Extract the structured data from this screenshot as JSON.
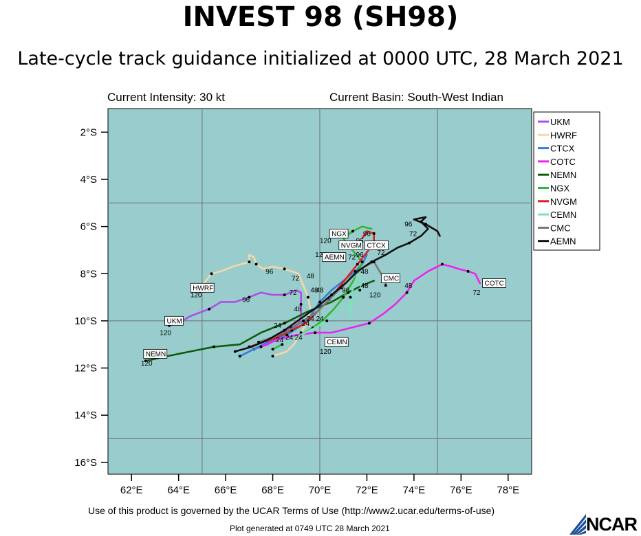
{
  "header": {
    "title": "INVEST 98 (SH98)",
    "subtitle": "Late-cycle track guidance initialized at 0000 UTC, 28 March 2021",
    "intensity": "Current Intensity: 30 kt",
    "basin": "Current Basin: South-West Indian"
  },
  "footer": {
    "terms": "Use of this product is governed by the UCAR Terms of Use (http://www2.ucar.edu/terms-of-use)",
    "generated": "Plot generated at 0749 UTC  28 March 2021",
    "logo": "NCAR"
  },
  "colors": {
    "ocean": "#99cccc",
    "grid": "#707070"
  },
  "chart_data": {
    "type": "line",
    "xlim": [
      61,
      79
    ],
    "ylim": [
      -16.5,
      -1
    ],
    "x_ticks": [
      62,
      64,
      66,
      68,
      70,
      72,
      74,
      76,
      78
    ],
    "x_tick_labels": [
      "62°E",
      "64°E",
      "66°E",
      "68°E",
      "70°E",
      "72°E",
      "74°E",
      "76°E",
      "78°E"
    ],
    "y_ticks": [
      -2,
      -4,
      -6,
      -8,
      -10,
      -12,
      -14,
      -16
    ],
    "y_tick_labels": [
      "2°S",
      "4°S",
      "6°S",
      "8°S",
      "10°S",
      "12°S",
      "14°S",
      "16°S"
    ],
    "grid_lon": [
      65,
      70,
      75
    ],
    "grid_lat": [
      -5,
      -10,
      -15
    ],
    "legend_position": "top-right",
    "series": [
      {
        "name": "UKM",
        "color": "#b04ce8",
        "points": [
          [
            67.2,
            -11.2
          ],
          [
            67.8,
            -11.0
          ],
          [
            68.2,
            -10.6
          ],
          [
            68.8,
            -10.3
          ],
          [
            69.1,
            -10.1
          ],
          [
            69.2,
            -9.8
          ],
          [
            69.2,
            -9.3
          ],
          [
            69.2,
            -8.8
          ],
          [
            69.0,
            -8.7
          ],
          [
            68.5,
            -8.9
          ],
          [
            68.0,
            -8.9
          ],
          [
            67.5,
            -8.8
          ],
          [
            67.0,
            -9.0
          ],
          [
            66.4,
            -9.2
          ],
          [
            65.8,
            -9.2
          ],
          [
            65.3,
            -9.5
          ],
          [
            64.5,
            -9.8
          ],
          [
            64.0,
            -10.1
          ],
          [
            63.6,
            -10.2
          ]
        ],
        "tags": [
          {
            "text": "120",
            "lon": 63.2,
            "lat": -10.6,
            "anchor": "start"
          },
          {
            "text": "96",
            "lon": 66.7,
            "lat": -9.2,
            "anchor": "start"
          },
          {
            "text": "72",
            "lon": 68.7,
            "lat": -8.9,
            "anchor": "start"
          },
          {
            "text": "48",
            "lon": 68.9,
            "lat": -9.6,
            "anchor": "start"
          }
        ],
        "label_box": {
          "text": "UKM",
          "lon": 63.5,
          "lat": -10.1
        }
      },
      {
        "name": "HWRF",
        "color": "#f4d8a8",
        "points": [
          [
            68.0,
            -11.5
          ],
          [
            68.6,
            -11.3
          ],
          [
            68.9,
            -11.0
          ],
          [
            69.2,
            -10.5
          ],
          [
            69.5,
            -10.0
          ],
          [
            69.6,
            -9.5
          ],
          [
            69.5,
            -9.0
          ],
          [
            69.3,
            -8.5
          ],
          [
            69.1,
            -8.0
          ],
          [
            68.5,
            -7.8
          ],
          [
            68.0,
            -7.7
          ],
          [
            67.6,
            -7.8
          ],
          [
            67.3,
            -7.6
          ],
          [
            67.2,
            -7.3
          ],
          [
            67.0,
            -7.2
          ],
          [
            67.0,
            -7.5
          ],
          [
            66.3,
            -7.7
          ],
          [
            65.8,
            -7.9
          ],
          [
            65.4,
            -8.0
          ],
          [
            65.0,
            -8.5
          ],
          [
            64.7,
            -8.7
          ]
        ],
        "tags": [
          {
            "text": "120",
            "lon": 64.5,
            "lat": -9.0,
            "anchor": "start"
          },
          {
            "text": "96",
            "lon": 67.7,
            "lat": -8.0,
            "anchor": "start"
          },
          {
            "text": "72",
            "lon": 68.8,
            "lat": -8.3,
            "anchor": "start"
          }
        ],
        "label_box": {
          "text": "HWRF",
          "lon": 64.6,
          "lat": -8.7
        }
      },
      {
        "name": "CTCX",
        "color": "#2f7fdc",
        "points": [
          [
            66.6,
            -11.5
          ],
          [
            67.2,
            -11.2
          ],
          [
            67.8,
            -10.9
          ],
          [
            68.6,
            -10.6
          ],
          [
            69.2,
            -10.2
          ],
          [
            69.6,
            -9.8
          ],
          [
            70.0,
            -9.2
          ],
          [
            70.5,
            -8.7
          ],
          [
            71.0,
            -8.3
          ],
          [
            71.5,
            -7.9
          ],
          [
            71.8,
            -7.6
          ],
          [
            72.0,
            -7.2
          ]
        ],
        "tags": [
          {
            "text": "48",
            "lon": 69.6,
            "lat": -8.8,
            "anchor": "start"
          },
          {
            "text": "72",
            "lon": 71.2,
            "lat": -7.4,
            "anchor": "start"
          }
        ],
        "label_box": {
          "text": "CTCX",
          "lon": 72.0,
          "lat": -6.9
        }
      },
      {
        "name": "COTC",
        "color": "#ee22ee",
        "points": [
          [
            67.5,
            -11.1
          ],
          [
            68.2,
            -10.8
          ],
          [
            69.0,
            -10.6
          ],
          [
            69.8,
            -10.5
          ],
          [
            70.5,
            -10.5
          ],
          [
            71.3,
            -10.3
          ],
          [
            72.1,
            -10.1
          ],
          [
            72.7,
            -9.7
          ],
          [
            73.2,
            -9.3
          ],
          [
            73.7,
            -8.8
          ],
          [
            74.0,
            -8.3
          ],
          [
            74.6,
            -7.9
          ],
          [
            75.2,
            -7.6
          ],
          [
            75.6,
            -7.7
          ],
          [
            75.9,
            -7.8
          ],
          [
            76.3,
            -7.9
          ],
          [
            76.6,
            -8.0
          ],
          [
            76.8,
            -8.4
          ]
        ],
        "tags": [
          {
            "text": "48",
            "lon": 73.6,
            "lat": -8.6,
            "anchor": "start"
          },
          {
            "text": "72",
            "lon": 76.5,
            "lat": -8.9,
            "anchor": "start"
          }
        ],
        "label_box": {
          "text": "COTC",
          "lon": 77.0,
          "lat": -8.5
        }
      },
      {
        "name": "NEMN",
        "color": "#0d5c0d",
        "points": [
          [
            62.6,
            -11.7
          ],
          [
            63.5,
            -11.5
          ],
          [
            64.5,
            -11.3
          ],
          [
            65.5,
            -11.1
          ],
          [
            66.6,
            -11.0
          ],
          [
            67.5,
            -10.5
          ],
          [
            68.5,
            -10.1
          ],
          [
            69.5,
            -9.6
          ],
          [
            70.5,
            -9.2
          ],
          [
            71.2,
            -8.8
          ],
          [
            71.8,
            -8.5
          ],
          [
            72.3,
            -8.3
          ]
        ],
        "tags": [
          {
            "text": "120",
            "lon": 62.4,
            "lat": -11.9,
            "anchor": "start"
          }
        ],
        "label_box": {
          "text": "NEMN",
          "lon": 62.6,
          "lat": -11.5
        }
      },
      {
        "name": "NGX",
        "color": "#2fb82f",
        "points": [
          [
            68.0,
            -11.2
          ],
          [
            68.6,
            -10.9
          ],
          [
            69.2,
            -10.6
          ],
          [
            69.7,
            -10.3
          ],
          [
            70.2,
            -9.9
          ],
          [
            70.6,
            -9.5
          ],
          [
            71.0,
            -9.0
          ],
          [
            71.3,
            -8.5
          ],
          [
            71.6,
            -8.0
          ],
          [
            71.8,
            -7.5
          ],
          [
            71.3,
            -6.9
          ],
          [
            71.0,
            -6.5
          ],
          [
            71.4,
            -6.2
          ],
          [
            71.8,
            -6.0
          ],
          [
            72.2,
            -6.1
          ]
        ],
        "tags": [
          {
            "text": "120",
            "lon": 70.0,
            "lat": -6.7,
            "anchor": "start"
          }
        ],
        "label_box": {
          "text": "NGX",
          "lon": 70.5,
          "lat": -6.4
        }
      },
      {
        "name": "NVGM",
        "color": "#dd1e1e",
        "points": [
          [
            67.0,
            -11.1
          ],
          [
            67.6,
            -10.9
          ],
          [
            68.2,
            -10.7
          ],
          [
            68.8,
            -10.4
          ],
          [
            69.4,
            -10.1
          ],
          [
            69.9,
            -9.6
          ],
          [
            70.4,
            -9.1
          ],
          [
            70.8,
            -8.6
          ],
          [
            71.2,
            -8.1
          ],
          [
            71.6,
            -7.6
          ],
          [
            72.0,
            -7.1
          ],
          [
            72.3,
            -6.7
          ],
          [
            72.3,
            -6.3
          ],
          [
            72.0,
            -6.2
          ],
          [
            71.8,
            -6.5
          ]
        ],
        "tags": [
          {
            "text": "120",
            "lon": 69.8,
            "lat": -7.3,
            "anchor": "start"
          }
        ],
        "label_box": {
          "text": "NVGM",
          "lon": 70.9,
          "lat": -6.9
        }
      },
      {
        "name": "CEMN",
        "color": "#7fe0c0",
        "points": [
          [
            68.4,
            -11.0
          ],
          [
            69.0,
            -10.7
          ],
          [
            69.6,
            -10.4
          ],
          [
            70.3,
            -10.0
          ],
          [
            70.9,
            -9.6
          ],
          [
            71.4,
            -9.2
          ],
          [
            71.7,
            -8.7
          ],
          [
            71.8,
            -8.3
          ],
          [
            71.6,
            -8.0
          ],
          [
            71.3,
            -9.0
          ],
          [
            71.3,
            -9.9
          ]
        ],
        "tags": [
          {
            "text": "120",
            "lon": 70.0,
            "lat": -11.4,
            "anchor": "start"
          }
        ],
        "label_box": {
          "text": "CEMN",
          "lon": 70.3,
          "lat": -11.0
        }
      },
      {
        "name": "CMC",
        "color": "#777777",
        "points": [
          [
            67.4,
            -10.9
          ],
          [
            68.0,
            -10.7
          ],
          [
            68.7,
            -10.4
          ],
          [
            69.3,
            -10.0
          ],
          [
            69.9,
            -9.6
          ],
          [
            70.4,
            -9.1
          ],
          [
            70.9,
            -8.6
          ],
          [
            71.4,
            -8.1
          ],
          [
            71.9,
            -7.7
          ],
          [
            72.3,
            -7.5
          ],
          [
            72.6,
            -8.0
          ],
          [
            72.8,
            -8.3
          ],
          [
            72.8,
            -8.5
          ]
        ],
        "tags": [
          {
            "text": "120",
            "lon": 72.1,
            "lat": -9.0,
            "anchor": "start"
          }
        ],
        "label_box": {
          "text": "CMC",
          "lon": 72.7,
          "lat": -8.3
        }
      },
      {
        "name": "AEMN",
        "color": "#111111",
        "points": [
          [
            66.4,
            -11.3
          ],
          [
            67.1,
            -11.1
          ],
          [
            67.8,
            -10.8
          ],
          [
            68.5,
            -10.4
          ],
          [
            69.2,
            -9.9
          ],
          [
            69.9,
            -9.4
          ],
          [
            70.5,
            -8.9
          ],
          [
            71.1,
            -8.4
          ],
          [
            71.6,
            -7.9
          ],
          [
            72.2,
            -7.5
          ],
          [
            72.8,
            -7.2
          ],
          [
            73.3,
            -6.9
          ],
          [
            73.8,
            -6.7
          ],
          [
            74.3,
            -6.4
          ],
          [
            74.6,
            -6.1
          ],
          [
            74.3,
            -5.8
          ],
          [
            74.5,
            -5.6
          ],
          [
            74.0,
            -5.7
          ],
          [
            74.5,
            -5.9
          ],
          [
            75.0,
            -6.2
          ],
          [
            75.1,
            -6.4
          ]
        ],
        "tags": [
          {
            "text": "96",
            "lon": 73.6,
            "lat": -6.0,
            "anchor": "start"
          },
          {
            "text": "72",
            "lon": 73.8,
            "lat": -6.4,
            "anchor": "start"
          }
        ],
        "label_box": {
          "text": "AEMN",
          "lon": 70.2,
          "lat": -7.4
        }
      }
    ],
    "extra_tau_labels": [
      {
        "text": "24",
        "lon": 68.3,
        "lat": -10.9
      },
      {
        "text": "24",
        "lon": 68.7,
        "lat": -10.8
      },
      {
        "text": "24",
        "lon": 69.1,
        "lat": -10.8
      },
      {
        "text": "24",
        "lon": 69.4,
        "lat": -10.2
      },
      {
        "text": "24",
        "lon": 69.6,
        "lat": -10.0
      },
      {
        "text": "24",
        "lon": 70.0,
        "lat": -10.0
      },
      {
        "text": "24",
        "lon": 68.2,
        "lat": -10.3
      },
      {
        "text": "48",
        "lon": 69.6,
        "lat": -8.2
      },
      {
        "text": "48",
        "lon": 70.0,
        "lat": -8.8
      },
      {
        "text": "48",
        "lon": 71.9,
        "lat": -8.0
      },
      {
        "text": "48",
        "lon": 71.9,
        "lat": -8.6
      },
      {
        "text": "96",
        "lon": 71.7,
        "lat": -6.7
      },
      {
        "text": "96",
        "lon": 72.0,
        "lat": -6.4
      },
      {
        "text": "96",
        "lon": 71.7,
        "lat": -7.3
      },
      {
        "text": "96",
        "lon": 71.1,
        "lat": -8.8
      },
      {
        "text": "72",
        "lon": 72.6,
        "lat": -7.2
      }
    ]
  }
}
